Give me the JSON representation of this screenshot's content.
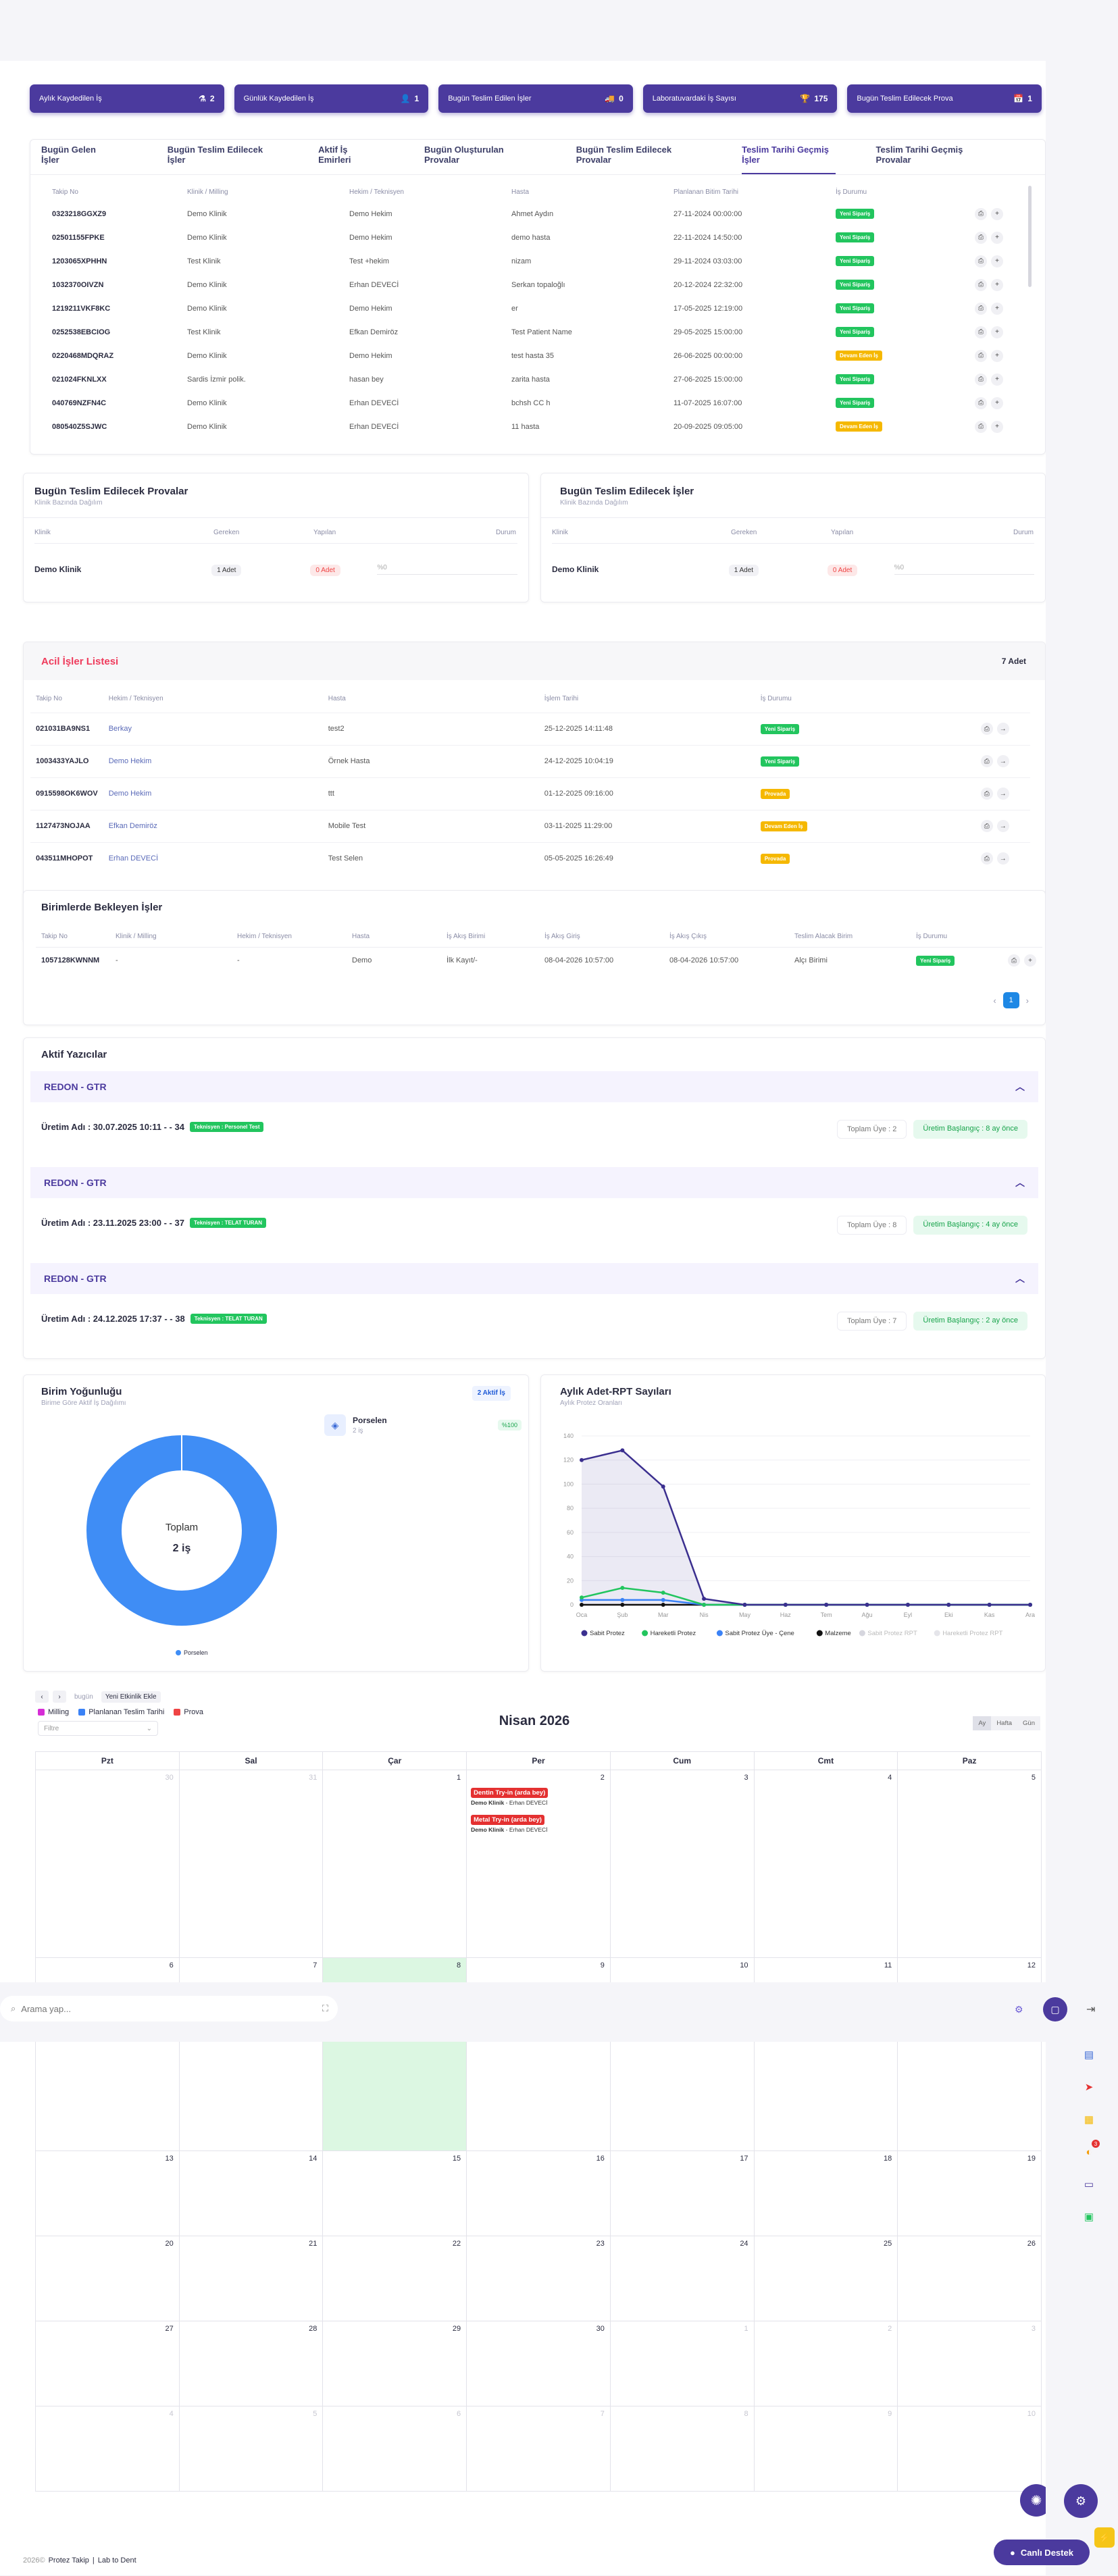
{
  "stats": [
    {
      "label": "Aylık Kaydedilen İş",
      "icon": "⚗",
      "value": "2"
    },
    {
      "label": "Günlük Kaydedilen İş",
      "icon": "👤",
      "value": "1"
    },
    {
      "label": "Bugün Teslim Edilen İşler",
      "icon": "🚚",
      "value": "0"
    },
    {
      "label": "Laboratuvardaki İş Sayısı",
      "icon": "🏆",
      "value": "175"
    },
    {
      "label": "Bugün Teslim Edilecek Prova",
      "icon": "📅",
      "value": "1"
    }
  ],
  "tabs": [
    "Bugün Gelen İşler",
    "Bugün Teslim Edilecek İşler",
    "Aktif İş Emirleri",
    "Bugün Oluşturulan Provalar",
    "Bugün Teslim Edilecek Provalar",
    "Teslim Tarihi Geçmiş İşler",
    "Teslim Tarihi Geçmiş Provalar"
  ],
  "overdue": {
    "headers": [
      "Takip No",
      "Klinik / Milling",
      "Hekim / Teknisyen",
      "Hasta",
      "Planlanan Bitim Tarihi",
      "İş Durumu"
    ],
    "rows": [
      [
        "0323218GGXZ9",
        "Demo Klinik",
        "Demo Hekim",
        "Ahmet Aydın",
        "27-11-2024 00:00:00",
        "Yeni Sipariş",
        "g"
      ],
      [
        "02501155FPKE",
        "Demo Klinik",
        "Demo Hekim",
        "demo hasta",
        "22-11-2024 14:50:00",
        "Yeni Sipariş",
        "g"
      ],
      [
        "1203065XPHHN",
        "Test Klinik",
        "Test +hekim",
        "nizam",
        "29-11-2024 03:03:00",
        "Yeni Sipariş",
        "g"
      ],
      [
        "1032370OIVZN",
        "Demo Klinik",
        "Erhan DEVECİ",
        "Serkan topaloğlı",
        "20-12-2024 22:32:00",
        "Yeni Sipariş",
        "g"
      ],
      [
        "1219211VKF8KC",
        "Demo Klinik",
        "Demo Hekim",
        "er",
        "17-05-2025 12:19:00",
        "Yeni Sipariş",
        "g"
      ],
      [
        "0252538EBCIOG",
        "Test Klinik",
        "Efkan Demiröz",
        "Test Patient Name",
        "29-05-2025 15:00:00",
        "Yeni Sipariş",
        "g"
      ],
      [
        "0220468MDQRAZ",
        "Demo Klinik",
        "Demo Hekim",
        "test hasta 35",
        "26-06-2025 00:00:00",
        "Devam Eden İş",
        "y"
      ],
      [
        "021024FKNLXX",
        "Sardis İzmir polik.",
        "hasan bey",
        "zarita hasta",
        "27-06-2025 15:00:00",
        "Yeni Sipariş",
        "g"
      ],
      [
        "040769NZFN4C",
        "Demo Klinik",
        "Erhan DEVECİ",
        "bchsh CC h",
        "11-07-2025 16:07:00",
        "Yeni Sipariş",
        "g"
      ],
      [
        "080540Z5SJWC",
        "Demo Klinik",
        "Erhan DEVECİ",
        "11 hasta",
        "20-09-2025 09:05:00",
        "Devam Eden İş",
        "y"
      ]
    ]
  },
  "provas": {
    "title": "Bugün Teslim Edilecek Provalar",
    "sub": "Klinik Bazında Dağılım",
    "headers": [
      "Klinik",
      "Gereken",
      "Yapılan",
      "Durum"
    ],
    "clinic": "Demo Klinik",
    "need": "1 Adet",
    "done": "0 Adet",
    "pct": "%0"
  },
  "jobs": {
    "title": "Bugün Teslim Edilecek İşler",
    "sub": "Klinik Bazında Dağılım",
    "headers": [
      "Klinik",
      "Gereken",
      "Yapılan",
      "Durum"
    ],
    "clinic": "Demo Klinik",
    "need": "1 Adet",
    "done": "0 Adet",
    "pct": "%0"
  },
  "urgent": {
    "title": "Acil İşler Listesi",
    "count": "7 Adet",
    "headers": [
      "Takip No",
      "Hekim / Teknisyen",
      "Hasta",
      "İşlem Tarihi",
      "İş Durumu"
    ],
    "rows": [
      [
        "021031BA9NS1",
        "Berkay",
        "test2",
        "25-12-2025 14:11:48",
        "Yeni Sipariş",
        "g"
      ],
      [
        "1003433YAJLO",
        "Demo Hekim",
        "Örnek Hasta",
        "24-12-2025 10:04:19",
        "Yeni Sipariş",
        "g"
      ],
      [
        "0915598OK6WOV",
        "Demo Hekim",
        "ttt",
        "01-12-2025 09:16:00",
        "Provada",
        "y"
      ],
      [
        "1127473NOJAA",
        "Efkan Demiröz",
        "Mobile Test",
        "03-11-2025 11:29:00",
        "Devam Eden İş",
        "y"
      ],
      [
        "043511MHOPOT",
        "Erhan DEVECİ",
        "Test Selen",
        "05-05-2025 16:26:49",
        "Provada",
        "y"
      ]
    ]
  },
  "pending": {
    "title": "Birimlerde Bekleyen İşler",
    "headers": [
      "Takip No",
      "Klinik / Milling",
      "Hekim / Teknisyen",
      "Hasta",
      "İş Akış Birimi",
      "İş Akış Giriş",
      "İş Akış Çıkış",
      "Teslim Alacak Birim",
      "İş Durumu"
    ],
    "row": [
      "1057128KWNNM",
      "-",
      "-",
      "Demo",
      "İlk Kayıt/-",
      "08-04-2026 10:57:00",
      "08-04-2026 10:57:00",
      "Alçı Birimi",
      "Yeni Sipariş"
    ],
    "page": "1"
  },
  "printers": {
    "title": "Aktif Yazıcılar",
    "items": [
      {
        "name": "REDON - GTR",
        "prod": "Üretim Adı : 30.07.2025 10:11 - - 34",
        "tech": "Teknisyen : Personel Test",
        "members": "Toplam Üye : 2",
        "start": "Üretim Başlangıç : 8 ay önce"
      },
      {
        "name": "REDON - GTR",
        "prod": "Üretim Adı : 23.11.2025 23:00 - - 37",
        "tech": "Teknisyen : TELAT TURAN",
        "members": "Toplam Üye : 8",
        "start": "Üretim Başlangıç : 4 ay önce"
      },
      {
        "name": "REDON - GTR",
        "prod": "Üretim Adı : 24.12.2025 17:37 - - 38",
        "tech": "Teknisyen : TELAT TURAN",
        "members": "Toplam Üye : 7",
        "start": "Üretim Başlangıç : 2 ay önce"
      }
    ]
  },
  "density": {
    "title": "Birim Yoğunluğu",
    "sub": "Birime Göre Aktif İş Dağılımı",
    "badge": "2 Aktif İş",
    "center_label": "Toplam",
    "center_value": "2 iş",
    "unit": "Porselen",
    "unit_sub": "2 iş",
    "unit_pct": "%100",
    "legend": "Porselen"
  },
  "chart_data": {
    "type": "line",
    "title": "Aylık Adet-RPT Sayıları",
    "subtitle": "Aylık Protez Oranları",
    "categories": [
      "Oca",
      "Şub",
      "Mar",
      "Nis",
      "May",
      "Haz",
      "Tem",
      "Ağu",
      "Eyl",
      "Eki",
      "Kas",
      "Ara"
    ],
    "ylim": [
      0,
      140
    ],
    "yticks": [
      "0",
      "20",
      "40",
      "60",
      "80",
      "100",
      "120",
      "140"
    ],
    "series": [
      {
        "name": "Sabit Protez",
        "color": "#3b2f8f",
        "values": [
          120,
          128,
          98,
          5,
          0,
          0,
          0,
          0,
          0,
          0,
          0,
          0
        ]
      },
      {
        "name": "Hareketli Protez",
        "color": "#22c55e",
        "values": [
          6,
          14,
          10,
          0,
          0,
          0,
          0,
          0,
          0,
          0,
          0,
          0
        ]
      },
      {
        "name": "Sabit Protez Üye - Çene",
        "color": "#3b82f6",
        "values": [
          4,
          4,
          4,
          0,
          0,
          0,
          0,
          0,
          0,
          0,
          0,
          0
        ]
      },
      {
        "name": "Malzeme",
        "color": "#111",
        "values": [
          0,
          0,
          0,
          0,
          0,
          0,
          0,
          0,
          0,
          0,
          0,
          0
        ]
      },
      {
        "name": "Sabit Protez RPT",
        "color": "#d6d6de",
        "values": [
          0,
          0,
          0,
          0,
          0,
          0,
          0,
          0,
          0,
          0,
          0,
          0
        ]
      },
      {
        "name": "Hareketli Protez RPT",
        "color": "#e5e5ea",
        "values": [
          0,
          0,
          0,
          0,
          0,
          0,
          0,
          0,
          0,
          0,
          0,
          0
        ]
      }
    ]
  },
  "calendar": {
    "today": "bugün",
    "add": "Yeni Etkinlik Ekle",
    "legend": [
      {
        "label": "Milling",
        "color": "#d62dd6"
      },
      {
        "label": "Planlanan Teslim Tarihi",
        "color": "#3b82f6"
      },
      {
        "label": "Prova",
        "color": "#ef4444"
      }
    ],
    "filter": "Filtre",
    "title": "Nisan 2026",
    "views": [
      "Ay",
      "Hafta",
      "Gün"
    ],
    "days": [
      "Pzt",
      "Sal",
      "Çar",
      "Per",
      "Cum",
      "Cmt",
      "Paz"
    ],
    "week1": [
      "30",
      "31",
      "1",
      "2",
      "3",
      "4",
      "5"
    ],
    "week2": [
      "6",
      "7",
      "8",
      "9",
      "10",
      "11",
      "12"
    ],
    "week3": [
      "13",
      "14",
      "15",
      "16",
      "17",
      "18",
      "19"
    ],
    "week4": [
      "20",
      "21",
      "22",
      "23",
      "24",
      "25",
      "26"
    ],
    "week5": [
      "27",
      "28",
      "29",
      "30",
      "1",
      "2",
      "3"
    ],
    "week6": [
      "4",
      "5",
      "6",
      "7",
      "8",
      "9",
      "10"
    ],
    "events": [
      {
        "title": "Dentin Try-in (arda bey)",
        "sub": "Demo Klinik",
        "doc": "Erhan DEVECİ"
      },
      {
        "title": "Metal Try-in (arda bey)",
        "sub": "Demo Klinik",
        "doc": "Erhan DEVECİ"
      }
    ]
  },
  "search": {
    "placeholder": "Arama yap..."
  },
  "footer": {
    "year": "2026©",
    "brand": "Protez Takip",
    "sep": "|",
    "lab": "Lab to Dent"
  },
  "support": "Canlı Destek",
  "notif_count": "3"
}
